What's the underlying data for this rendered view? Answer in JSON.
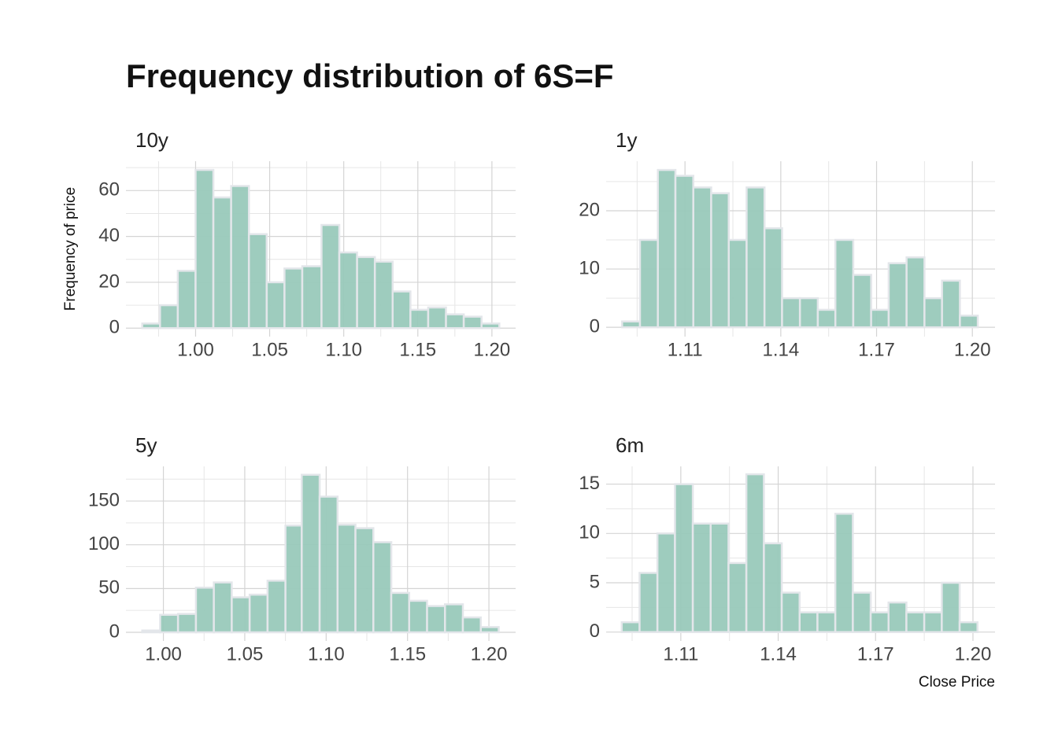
{
  "title": "Frequency distribution of 6S=F",
  "chart_data": [
    {
      "type": "histogram",
      "title": "10y",
      "ylabel": "Frequency of price",
      "color": "#99c9bb",
      "edgecolor": "#e3e6ea",
      "grid": true,
      "bins": [
        0.964,
        0.976,
        0.988,
        1.0,
        1.012,
        1.024,
        1.036,
        1.048,
        1.06,
        1.072,
        1.085,
        1.097,
        1.109,
        1.121,
        1.133,
        1.145,
        1.157,
        1.169,
        1.181,
        1.193,
        1.205
      ],
      "values": [
        2,
        10,
        25,
        69,
        57,
        62,
        41,
        20,
        26,
        27,
        45,
        33,
        31,
        29,
        16,
        8,
        9,
        6,
        5,
        2
      ],
      "xlim": [
        0.953,
        1.216
      ],
      "ylim": [
        -3.7,
        72.8
      ],
      "xticks": [
        {
          "value": 1.0,
          "label": "1.00"
        },
        {
          "value": 1.05,
          "label": "1.05"
        },
        {
          "value": 1.1,
          "label": "1.10"
        },
        {
          "value": 1.15,
          "label": "1.15"
        },
        {
          "value": 1.2,
          "label": "1.20"
        }
      ],
      "yticks": [
        0,
        20,
        40,
        60
      ],
      "xminor": [
        0.975,
        1.025,
        1.075,
        1.125,
        1.175
      ],
      "yminor": [
        10,
        30,
        50,
        70
      ]
    },
    {
      "type": "histogram",
      "title": "1y",
      "color": "#99c9bb",
      "edgecolor": "#e3e6ea",
      "grid": true,
      "bins": [
        1.0903,
        1.0959,
        1.1015,
        1.107,
        1.1126,
        1.1182,
        1.1237,
        1.1293,
        1.1349,
        1.1404,
        1.146,
        1.1516,
        1.1571,
        1.1627,
        1.1683,
        1.1738,
        1.1794,
        1.185,
        1.1905,
        1.1961,
        1.2017
      ],
      "values": [
        1,
        15,
        27,
        26,
        24,
        23,
        15,
        24,
        17,
        5,
        5,
        3,
        15,
        9,
        3,
        11,
        12,
        5,
        8,
        2
      ],
      "xlim": [
        1.0853,
        1.2071
      ],
      "ylim": [
        -1.6,
        28.5
      ],
      "xticks": [
        1.11,
        1.14,
        1.17,
        {
          "value": 1.2,
          "label": "1.20"
        }
      ],
      "yticks": [
        0,
        10,
        20
      ],
      "xminor": [
        1.095,
        1.125,
        1.155,
        1.185
      ],
      "yminor": [
        5,
        15,
        25
      ]
    },
    {
      "type": "histogram",
      "title": "5y",
      "color": "#99c9bb",
      "edgecolor": "#e3e6ea",
      "grid": true,
      "bins": [
        0.987,
        0.998,
        1.009,
        1.02,
        1.031,
        1.042,
        1.053,
        1.064,
        1.075,
        1.085,
        1.096,
        1.107,
        1.118,
        1.129,
        1.14,
        1.151,
        1.162,
        1.173,
        1.184,
        1.195,
        1.206
      ],
      "values": [
        2,
        20,
        21,
        51,
        57,
        40,
        43,
        59,
        122,
        180,
        155,
        123,
        119,
        103,
        45,
        36,
        30,
        32,
        17,
        6
      ],
      "xlim": [
        0.977,
        1.2164
      ],
      "ylim": [
        -9.9,
        189.6
      ],
      "xticks": [
        {
          "value": 1.0,
          "label": "1.00"
        },
        {
          "value": 1.05,
          "label": "1.05"
        },
        {
          "value": 1.1,
          "label": "1.10"
        },
        {
          "value": 1.15,
          "label": "1.15"
        },
        {
          "value": 1.2,
          "label": "1.20"
        }
      ],
      "yticks": [
        0,
        50,
        100,
        150
      ],
      "xminor": [
        1.025,
        1.075,
        1.125,
        1.175
      ],
      "yminor": [
        25,
        75,
        125,
        175
      ]
    },
    {
      "type": "histogram",
      "title": "6m",
      "xlabel": "Close Price",
      "color": "#99c9bb",
      "edgecolor": "#e3e6ea",
      "grid": true,
      "bins": [
        1.0918,
        1.0973,
        1.1028,
        1.1082,
        1.1137,
        1.1192,
        1.1247,
        1.1302,
        1.1356,
        1.1411,
        1.1466,
        1.1521,
        1.1576,
        1.163,
        1.1685,
        1.174,
        1.1795,
        1.185,
        1.1904,
        1.1959,
        1.2014
      ],
      "values": [
        1,
        6,
        10,
        15,
        11,
        11,
        7,
        16,
        9,
        4,
        2,
        2,
        12,
        4,
        2,
        3,
        2,
        2,
        5,
        1
      ],
      "xlim": [
        1.087,
        1.2068
      ],
      "ylim": [
        -0.9,
        16.8
      ],
      "xticks": [
        1.11,
        1.14,
        1.17,
        {
          "value": 1.2,
          "label": "1.20"
        }
      ],
      "yticks": [
        0,
        5,
        10,
        15
      ],
      "xminor": [
        1.095,
        1.125,
        1.155,
        1.185
      ],
      "yminor": [
        2.5,
        7.5,
        12.5
      ]
    }
  ]
}
